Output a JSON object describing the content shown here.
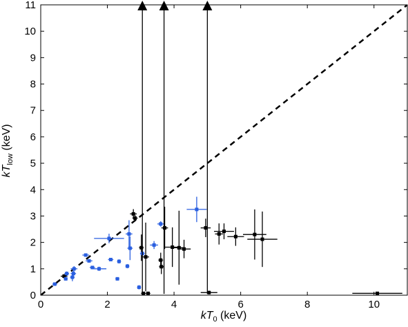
{
  "chart_data": {
    "type": "scatter",
    "xlabel": {
      "main": "kT",
      "sub": "0",
      "unit": " (keV)"
    },
    "ylabel": {
      "main": "kT",
      "sub": "low",
      "unit": " (keV)"
    },
    "xlim": [
      0,
      11
    ],
    "ylim": [
      0,
      11
    ],
    "x_ticks": [
      "0",
      "2",
      "4",
      "6",
      "8",
      "10"
    ],
    "y_ticks": [
      "0",
      "1",
      "2",
      "3",
      "4",
      "5",
      "6",
      "7",
      "8",
      "9",
      "10",
      "11"
    ],
    "grid": false,
    "legend": "none",
    "reference_line": {
      "style": "dashed",
      "from": [
        0,
        0
      ],
      "to": [
        11,
        11
      ],
      "color": "#000000"
    },
    "colors": {
      "black_series": "#000000",
      "blue_series": "#2a5fe0"
    },
    "series": [
      {
        "color": "#000000",
        "points": [
          {
            "x": 0.7,
            "y": 0.72,
            "xerr": 0.1,
            "yerr": 0.08
          },
          {
            "x": 2.78,
            "y": 3.08,
            "xerr": 0.1,
            "yerr": 0.18
          },
          {
            "x": 2.83,
            "y": 2.92,
            "xerr": 0.08,
            "yerr": 0.12
          },
          {
            "x": 3.02,
            "y": 1.8,
            "xerr": 0.07,
            "yerr": 0.5
          },
          {
            "x": 3.08,
            "y": 0.07,
            "xerr": 0.07,
            "yerr": 0.06
          },
          {
            "x": 3.15,
            "y": 1.45,
            "xerr": 0.1,
            "yerr": 1.3
          },
          {
            "x": 3.22,
            "y": 0.07,
            "xerr": 0.07,
            "yerr": 0.06
          },
          {
            "x": 3.6,
            "y": 1.33,
            "xerr": 0.07,
            "yerr": 0.28
          },
          {
            "x": 3.62,
            "y": 1.08,
            "xerr": 0.07,
            "yerr": 0.28
          },
          {
            "x": 3.72,
            "y": 2.55,
            "xerr": 0.1,
            "yerr": 0.8
          },
          {
            "x": 3.95,
            "y": 1.82,
            "xerr": 0.22,
            "yerr": 0.75
          },
          {
            "x": 4.15,
            "y": 1.8,
            "xerr": 0.15,
            "yerr": 1.4
          },
          {
            "x": 4.3,
            "y": 1.75,
            "xerr": 0.2,
            "yerr": 0.35
          },
          {
            "x": 4.95,
            "y": 2.55,
            "xerr": 0.15,
            "yerr": 0.35
          },
          {
            "x": 5.05,
            "y": 0.1,
            "xerr": 0.25,
            "yerr": 0.07
          },
          {
            "x": 5.35,
            "y": 2.32,
            "xerr": 0.12,
            "yerr": 0.4
          },
          {
            "x": 5.5,
            "y": 2.42,
            "xerr": 0.3,
            "yerr": 0.3
          },
          {
            "x": 5.85,
            "y": 2.22,
            "xerr": 0.25,
            "yerr": 0.35
          },
          {
            "x": 6.42,
            "y": 2.3,
            "xerr": 0.35,
            "yerr": 0.95
          },
          {
            "x": 6.65,
            "y": 2.12,
            "xerr": 0.45,
            "yerr": 1.05
          },
          {
            "x": 10.1,
            "y": 0.07,
            "xerr": 0.75,
            "yerr": 0.06
          }
        ]
      },
      {
        "color": "#2a5fe0",
        "points": [
          {
            "x": 0.42,
            "y": 0.42,
            "xerr": 0.07,
            "yerr": 0.06
          },
          {
            "x": 0.75,
            "y": 0.62,
            "xerr": 0.06,
            "yerr": 0.06
          },
          {
            "x": 0.78,
            "y": 0.82,
            "xerr": 0.07,
            "yerr": 0.08
          },
          {
            "x": 0.95,
            "y": 0.68,
            "xerr": 0.07,
            "yerr": 0.15
          },
          {
            "x": 0.98,
            "y": 0.82,
            "xerr": 0.08,
            "yerr": 0.1
          },
          {
            "x": 1.0,
            "y": 1.0,
            "xerr": 0.1,
            "yerr": 0.1
          },
          {
            "x": 1.35,
            "y": 1.52,
            "xerr": 0.1,
            "yerr": 0.06
          },
          {
            "x": 1.45,
            "y": 1.3,
            "xerr": 0.1,
            "yerr": 0.06
          },
          {
            "x": 1.55,
            "y": 1.05,
            "xerr": 0.08,
            "yerr": 0.06
          },
          {
            "x": 1.75,
            "y": 1.0,
            "xerr": 0.22,
            "yerr": 0.08
          },
          {
            "x": 2.05,
            "y": 2.15,
            "xerr": 0.45,
            "yerr": 0.18
          },
          {
            "x": 2.1,
            "y": 1.35,
            "xerr": 0.08,
            "yerr": 0.06
          },
          {
            "x": 2.3,
            "y": 0.62,
            "xerr": 0.06,
            "yerr": 0.06
          },
          {
            "x": 2.35,
            "y": 1.28,
            "xerr": 0.06,
            "yerr": 0.08
          },
          {
            "x": 2.6,
            "y": 1.1,
            "xerr": 0.06,
            "yerr": 0.08
          },
          {
            "x": 2.65,
            "y": 2.32,
            "xerr": 0.1,
            "yerr": 0.52
          },
          {
            "x": 2.68,
            "y": 1.78,
            "xerr": 0.08,
            "yerr": 0.45
          },
          {
            "x": 2.95,
            "y": 0.3,
            "xerr": 0.06,
            "yerr": 0.08
          },
          {
            "x": 3.05,
            "y": 1.58,
            "xerr": 0.07,
            "yerr": 0.1
          },
          {
            "x": 3.4,
            "y": 1.9,
            "xerr": 0.12,
            "yerr": 0.15
          },
          {
            "x": 3.6,
            "y": 2.7,
            "xerr": 0.1,
            "yerr": 0.1
          },
          {
            "x": 4.68,
            "y": 3.25,
            "xerr": 0.3,
            "yerr": 0.48
          }
        ]
      }
    ],
    "lower_limits": [
      {
        "x": 3.05,
        "y_from": 0.05
      },
      {
        "x": 3.7,
        "y_from": 0.05
      },
      {
        "x": 5.0,
        "y_from": 0.05
      }
    ]
  }
}
